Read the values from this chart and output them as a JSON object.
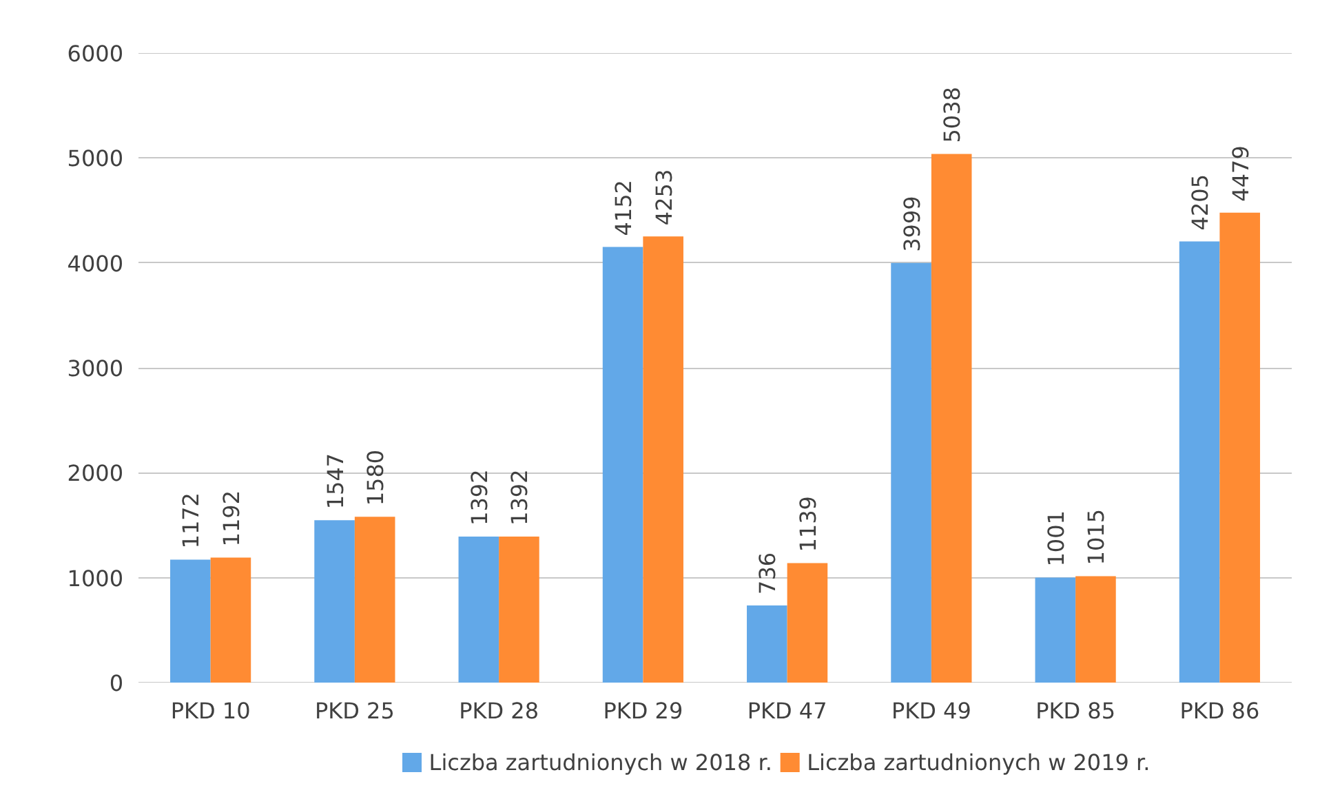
{
  "chart_data": {
    "type": "bar",
    "categories": [
      "PKD 10",
      "PKD 25",
      "PKD 28",
      "PKD 29",
      "PKD 47",
      "PKD 49",
      "PKD 85",
      "PKD 86"
    ],
    "series": [
      {
        "name": "Liczba zartudnionych w 2018 r.",
        "color": "#62a8e8",
        "values": [
          1172,
          1547,
          1392,
          4152,
          736,
          3999,
          1001,
          4205
        ]
      },
      {
        "name": "Liczba zartudnionych w 2019 r.",
        "color": "#ff8b33",
        "values": [
          1192,
          1580,
          1392,
          4253,
          1139,
          5038,
          1015,
          4479
        ]
      }
    ],
    "ylim": [
      0,
      6000
    ],
    "yticks": [
      0,
      1000,
      2000,
      3000,
      4000,
      5000,
      6000
    ],
    "grid": "y",
    "legend": "bottom",
    "data_labels": true
  }
}
